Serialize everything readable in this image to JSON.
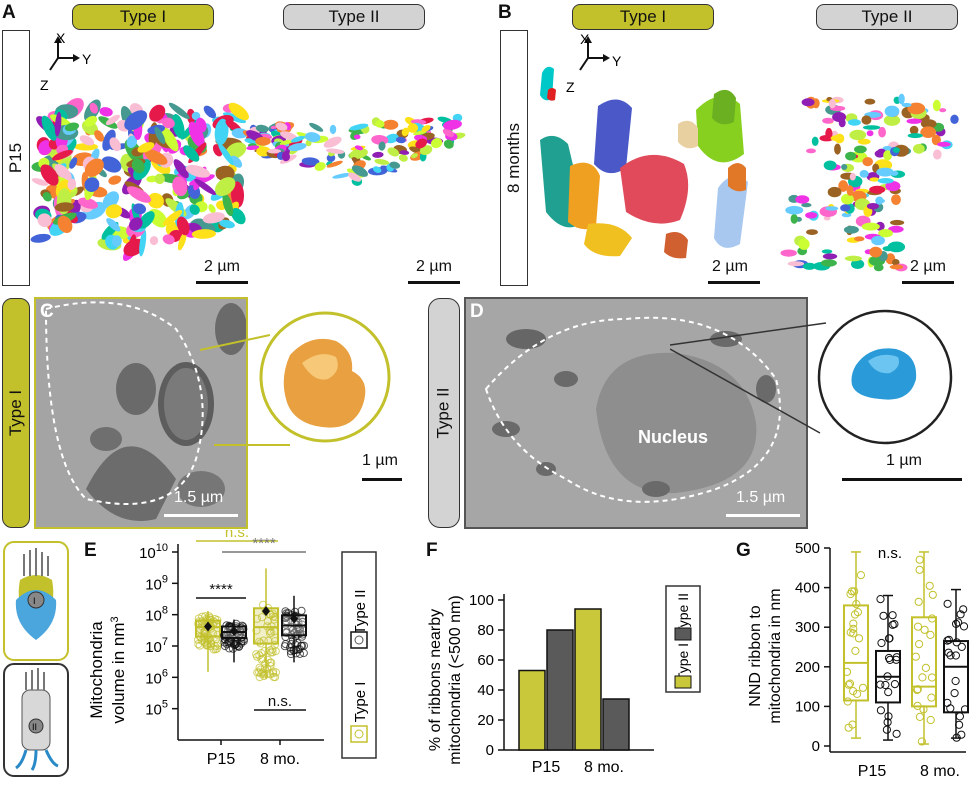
{
  "panels": {
    "a": {
      "letter": "A",
      "type1": "Type I",
      "type2": "Type II",
      "side": "P15",
      "scale1": "2 µm",
      "scale2": "2 µm"
    },
    "b": {
      "letter": "B",
      "type1": "Type I",
      "type2": "Type II",
      "side": "8 months",
      "scale1": "2 µm",
      "scale2": "2 µm"
    },
    "axes": {
      "x": "X",
      "y": "Y",
      "z": "Z"
    },
    "c": {
      "letter": "C",
      "side": "Type I",
      "scale_em": "1.5 µm",
      "scale_3d": "1 µm"
    },
    "d": {
      "letter": "D",
      "side": "Type II",
      "nucleus": "Nucleus",
      "scale_em": "1.5 µm",
      "scale_3d": "1 µm"
    },
    "e": {
      "letter": "E"
    },
    "f": {
      "letter": "F"
    },
    "g": {
      "letter": "G"
    },
    "cell_icon_1": "I",
    "cell_icon_2": "II"
  },
  "chart_data": [
    {
      "id": "E",
      "type": "box",
      "ylabel_line1": "Mitochondria",
      "ylabel_line2": "volume in nm",
      "ylabel_sup": "3",
      "yscale": "log",
      "ylim": [
        10000,
        10000000000
      ],
      "yticks": [
        {
          "base": "10",
          "exp": "5",
          "v": 100000
        },
        {
          "base": "10",
          "exp": "6",
          "v": 1000000
        },
        {
          "base": "10",
          "exp": "7",
          "v": 10000000
        },
        {
          "base": "10",
          "exp": "8",
          "v": 100000000
        },
        {
          "base": "10",
          "exp": "9",
          "v": 1000000000
        },
        {
          "base": "10",
          "exp": "10",
          "v": 10000000000
        }
      ],
      "categories": [
        "P15",
        "8 mo."
      ],
      "legend": [
        "Type II",
        "Type I"
      ],
      "boxes": [
        {
          "group": "P15",
          "series": "Type I",
          "q1": 20000000,
          "median": 40000000,
          "q3": 65000000,
          "wlo": 1500000,
          "whi": 130000000,
          "mean": 42000000
        },
        {
          "group": "P15",
          "series": "Type II",
          "q1": 18000000,
          "median": 28000000,
          "q3": 42000000,
          "wlo": 3000000,
          "whi": 70000000,
          "mean": 30000000
        },
        {
          "group": "8 mo.",
          "series": "Type I",
          "q1": 12000000,
          "median": 40000000,
          "q3": 160000000,
          "wlo": 900000,
          "whi": 3000000000,
          "mean": 130000000
        },
        {
          "group": "8 mo.",
          "series": "Type II",
          "q1": 22000000,
          "median": 45000000,
          "q3": 95000000,
          "wlo": 3000000,
          "whi": 400000000,
          "mean": 75000000
        }
      ],
      "significance": [
        {
          "label": "n.s.",
          "from": 0,
          "to": 2
        },
        {
          "label": "****",
          "from": 0,
          "to": 1
        },
        {
          "label": "****",
          "from": 1,
          "to": 3
        },
        {
          "label": "n.s.",
          "from": 2,
          "to": 3
        }
      ]
    },
    {
      "id": "F",
      "type": "bar",
      "ylabel_line1": "% of ribbons nearby",
      "ylabel_line2": "mitochondria (<500 nm)",
      "ylim": [
        0,
        100
      ],
      "yticks": [
        0,
        20,
        40,
        60,
        80,
        100
      ],
      "categories": [
        "P15",
        "8 mo."
      ],
      "legend": [
        "Type II",
        "Type I"
      ],
      "series": [
        {
          "name": "Type I",
          "values": [
            53,
            94
          ]
        },
        {
          "name": "Type II",
          "values": [
            80,
            34
          ]
        }
      ]
    },
    {
      "id": "G",
      "type": "box",
      "ylabel_line1": "NND ribbon to",
      "ylabel_line2": "mitochondria in nm",
      "ylim": [
        0,
        500
      ],
      "yticks": [
        0,
        100,
        200,
        300,
        400,
        500
      ],
      "categories": [
        "P15",
        "8 mo."
      ],
      "annotation": "n.s.",
      "boxes": [
        {
          "group": "P15",
          "series": "Type I",
          "q1": 115,
          "median": 210,
          "q3": 355,
          "wlo": 20,
          "whi": 490
        },
        {
          "group": "P15",
          "series": "Type II",
          "q1": 110,
          "median": 175,
          "q3": 240,
          "wlo": 15,
          "whi": 380
        },
        {
          "group": "8 mo.",
          "series": "Type I",
          "q1": 100,
          "median": 150,
          "q3": 325,
          "wlo": 5,
          "whi": 490
        },
        {
          "group": "8 mo.",
          "series": "Type II",
          "q1": 85,
          "median": 200,
          "q3": 265,
          "wlo": 20,
          "whi": 395
        }
      ]
    }
  ]
}
